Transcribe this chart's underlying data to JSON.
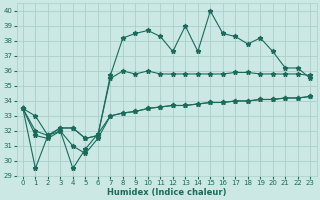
{
  "xlabel": "Humidex (Indice chaleur)",
  "bg_color": "#cce8e4",
  "grid_color": "#aacfca",
  "line_color": "#1a6b5a",
  "xlim": [
    -0.5,
    23.5
  ],
  "ylim": [
    29,
    40.5
  ],
  "yticks": [
    29,
    30,
    31,
    32,
    33,
    34,
    35,
    36,
    37,
    38,
    39,
    40
  ],
  "xticks": [
    0,
    1,
    2,
    3,
    4,
    5,
    6,
    7,
    8,
    9,
    10,
    11,
    12,
    13,
    14,
    15,
    16,
    17,
    18,
    19,
    20,
    21,
    22,
    23
  ],
  "series": [
    [
      33.5,
      33.0,
      31.7,
      32.2,
      32.2,
      31.5,
      31.7,
      35.7,
      38.2,
      38.5,
      38.7,
      38.3,
      37.3,
      39.0,
      37.3,
      40.0,
      38.5,
      38.3,
      37.8,
      38.2,
      37.3,
      36.2,
      36.2,
      35.5
    ],
    [
      33.5,
      32.0,
      31.7,
      32.2,
      32.2,
      31.5,
      31.7,
      35.5,
      36.0,
      35.8,
      36.0,
      35.8,
      35.8,
      35.8,
      35.8,
      35.8,
      35.8,
      35.9,
      35.9,
      35.8,
      35.8,
      35.8,
      35.8,
      35.7
    ],
    [
      33.5,
      31.7,
      31.5,
      32.0,
      31.0,
      30.5,
      31.5,
      33.0,
      33.2,
      33.3,
      33.5,
      33.6,
      33.7,
      33.7,
      33.8,
      33.9,
      33.9,
      34.0,
      34.0,
      34.1,
      34.1,
      34.2,
      34.2,
      34.3
    ],
    [
      33.5,
      29.5,
      31.7,
      32.0,
      29.5,
      30.8,
      31.8,
      33.0,
      33.2,
      33.3,
      33.5,
      33.6,
      33.7,
      33.7,
      33.8,
      33.9,
      33.9,
      34.0,
      34.0,
      34.1,
      34.1,
      34.2,
      34.2,
      34.3
    ]
  ],
  "marker": "*",
  "markersize": 3.5,
  "linewidth": 0.8
}
